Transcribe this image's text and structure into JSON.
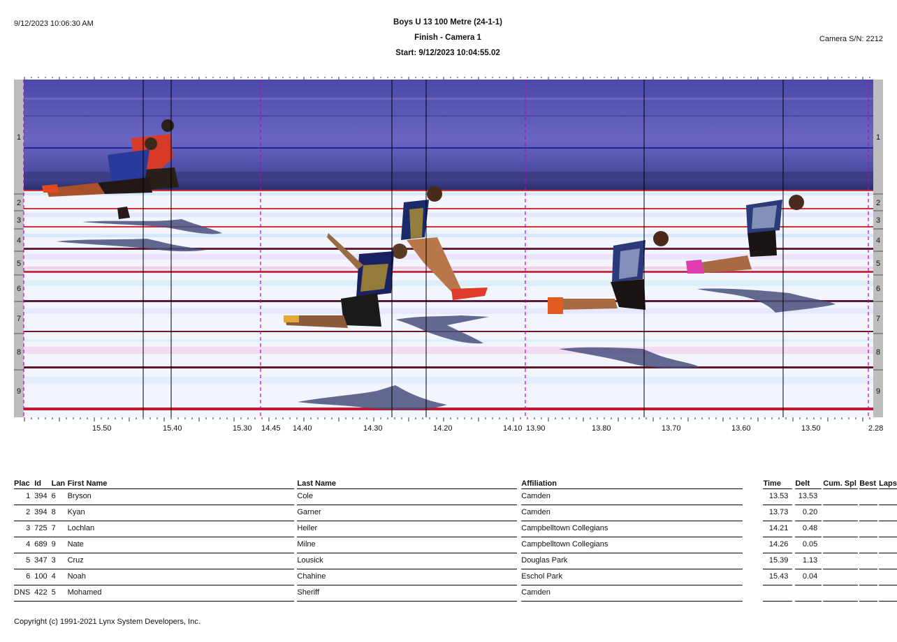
{
  "header": {
    "datetime": "9/12/2023 10:06:30 AM",
    "title": "Boys U 13 100 Metre (24-1-1)",
    "subtitle": "Finish - Camera 1",
    "start": "Start: 9/12/2023 10:04:55.02",
    "camera_sn": "Camera S/N: 2212"
  },
  "photo": {
    "lanes": [
      "1",
      "2",
      "3",
      "4",
      "5",
      "6",
      "7",
      "8",
      "9"
    ],
    "time_labels": [
      "15.50",
      "15.40",
      "15.30",
      "14.45",
      "14.40",
      "14.30",
      "14.20",
      "14.10",
      "13.90",
      "13.80",
      "13.70",
      "13.60",
      "13.50",
      "2.28"
    ],
    "colors": {
      "sky": "#5a56b0",
      "track": "#f2f5fb",
      "lane_red": "#d0303a",
      "lane_dark": "#5a1a2a",
      "marker": "#c000c0",
      "runner_red": "#d83a2a",
      "runner_blue": "#2a3a9a"
    }
  },
  "table": {
    "headers": [
      "Plac",
      "Id",
      "Lan",
      "First Name",
      "Last Name",
      "Affiliation",
      "Time",
      "Delt",
      "Cum. Spl",
      "Best",
      "Laps"
    ],
    "rows": [
      {
        "plac": "1",
        "id": "394",
        "lane": "6",
        "first": "Bryson",
        "last": "Cole",
        "aff": "Camden",
        "time": "13.53",
        "delt": "13.53"
      },
      {
        "plac": "2",
        "id": "394",
        "lane": "8",
        "first": "Kyan",
        "last": "Garner",
        "aff": "Camden",
        "time": "13.73",
        "delt": "0.20"
      },
      {
        "plac": "3",
        "id": "725",
        "lane": "7",
        "first": "Lochlan",
        "last": "Heiler",
        "aff": "Campbelltown Collegians",
        "time": "14.21",
        "delt": "0.48"
      },
      {
        "plac": "4",
        "id": "689",
        "lane": "9",
        "first": "Nate",
        "last": "Milne",
        "aff": "Campbelltown Collegians",
        "time": "14.26",
        "delt": "0.05"
      },
      {
        "plac": "5",
        "id": "347",
        "lane": "3",
        "first": "Cruz",
        "last": "Lousick",
        "aff": "Douglas Park",
        "time": "15.39",
        "delt": "1.13"
      },
      {
        "plac": "6",
        "id": "100",
        "lane": "4",
        "first": "Noah",
        "last": "Chahine",
        "aff": "Eschol Park",
        "time": "15.43",
        "delt": "0.04"
      },
      {
        "plac": "DNS",
        "id": "422",
        "lane": "5",
        "first": "Mohamed",
        "last": "Sheriff",
        "aff": "Camden",
        "time": "",
        "delt": ""
      }
    ]
  },
  "footer": "Copyright (c) 1991-2021 Lynx System Developers, Inc."
}
